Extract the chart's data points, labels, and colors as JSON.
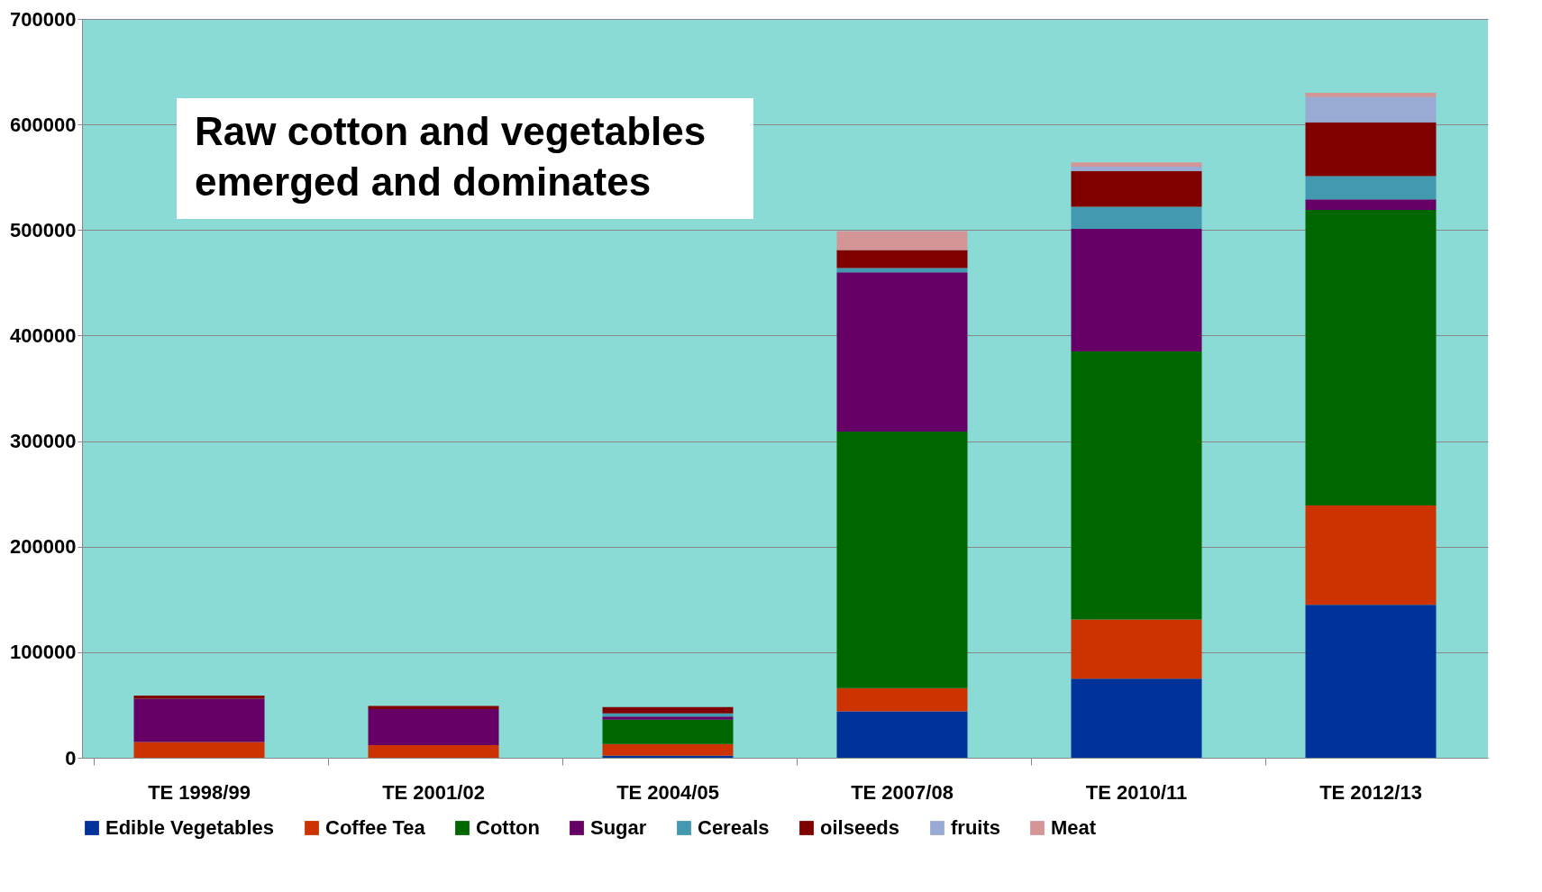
{
  "chart_data": {
    "type": "bar",
    "stacked": true,
    "categories": [
      "TE 1998/99",
      "TE 2001/02",
      "TE 2004/05",
      "TE 2007/08",
      "TE 2010/11",
      "TE 2012/13"
    ],
    "series": [
      {
        "name": "Edible Vegetables",
        "color": "#003399",
        "values": [
          0,
          0,
          2000,
          44000,
          75000,
          145000
        ]
      },
      {
        "name": "Coffee Tea",
        "color": "#cc3300",
        "values": [
          15000,
          12000,
          11000,
          22000,
          56000,
          94000
        ]
      },
      {
        "name": "Cotton",
        "color": "#006600",
        "values": [
          0,
          0,
          23000,
          243000,
          254000,
          280000
        ]
      },
      {
        "name": "Sugar",
        "color": "#660066",
        "values": [
          41000,
          34000,
          3000,
          151000,
          116000,
          10000
        ]
      },
      {
        "name": "Cereals",
        "color": "#4399b0",
        "values": [
          0,
          0,
          3000,
          4000,
          21000,
          22000
        ]
      },
      {
        "name": "oilseeds",
        "color": "#800000",
        "values": [
          3000,
          3000,
          6000,
          17000,
          34000,
          51000
        ]
      },
      {
        "name": "fruits",
        "color": "#99aad5",
        "values": [
          0,
          0,
          0,
          0,
          4000,
          24000
        ]
      },
      {
        "name": "Meat",
        "color": "#d39595",
        "values": [
          0,
          0,
          0,
          18000,
          4000,
          4000
        ]
      }
    ],
    "ylim": [
      0,
      700000
    ],
    "yticks": [
      0,
      100000,
      200000,
      300000,
      400000,
      500000,
      600000,
      700000
    ],
    "grid": "y",
    "legend": "bottom",
    "annotations": [
      "Raw cotton and vegetables\nemerged and dominates"
    ]
  }
}
